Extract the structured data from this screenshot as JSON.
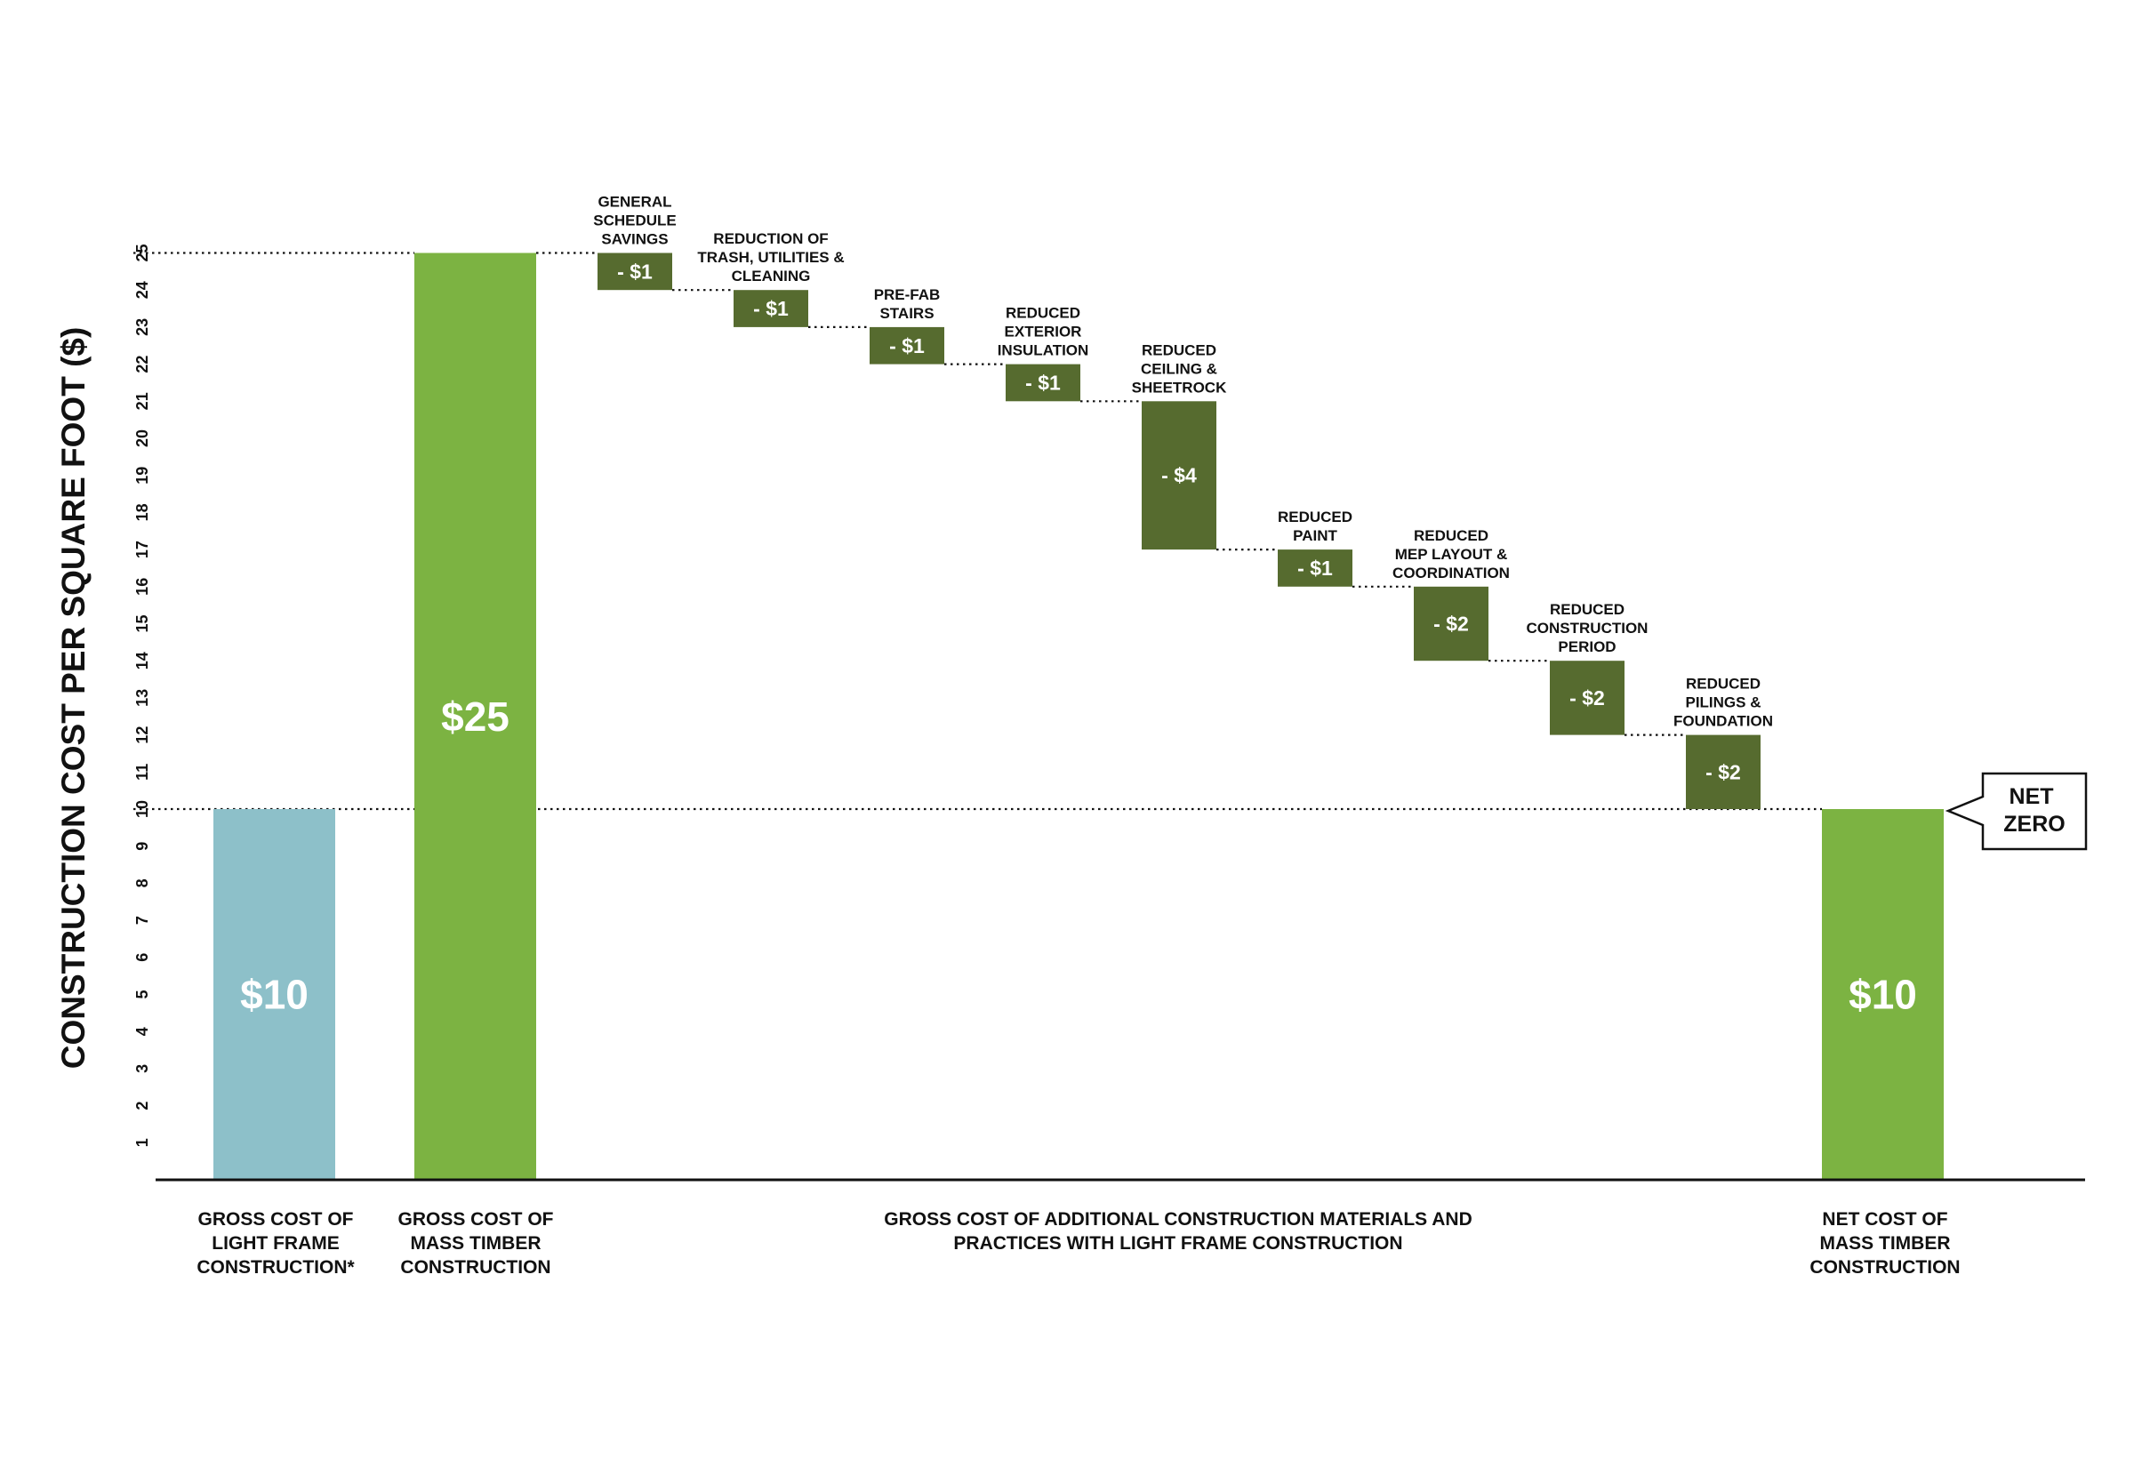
{
  "chart_data": {
    "type": "waterfall",
    "ylabel": "CONSTRUCTION COST PER SQUARE FOOT ($)",
    "ylim": [
      0,
      25
    ],
    "yticks": [
      "1",
      "2",
      "3",
      "4",
      "5",
      "6",
      "7",
      "8",
      "9",
      "10",
      "11",
      "12",
      "13",
      "14",
      "15",
      "16",
      "17",
      "18",
      "19",
      "20",
      "21",
      "22",
      "23",
      "24",
      "25"
    ],
    "colors": {
      "light_frame": "#8dc0c9",
      "mass_timber": "#7cb342",
      "reduction": "#566b2f",
      "axis": "#111111"
    },
    "bars": [
      {
        "kind": "total",
        "label": "GROSS COST OF LIGHT FRAME CONSTRUCTION*",
        "value": 10,
        "value_label": "$10",
        "color_key": "light_frame"
      },
      {
        "kind": "total",
        "label": "GROSS COST OF MASS TIMBER CONSTRUCTION",
        "value": 25,
        "value_label": "$25",
        "color_key": "mass_timber"
      },
      {
        "kind": "delta",
        "label": "GENERAL SCHEDULE SAVINGS",
        "label_lines": [
          "GENERAL",
          "SCHEDULE",
          "SAVINGS"
        ],
        "start": 25,
        "value": -1,
        "value_label": "- $1"
      },
      {
        "kind": "delta",
        "label": "REDUCTION OF TRASH, UTILITIES & CLEANING",
        "label_lines": [
          "REDUCTION OF",
          "TRASH, UTILITIES &",
          "CLEANING"
        ],
        "start": 24,
        "value": -1,
        "value_label": "- $1"
      },
      {
        "kind": "delta",
        "label": "PRE-FAB STAIRS",
        "label_lines": [
          "PRE-FAB",
          "STAIRS"
        ],
        "start": 23,
        "value": -1,
        "value_label": "- $1"
      },
      {
        "kind": "delta",
        "label": "REDUCED EXTERIOR INSULATION",
        "label_lines": [
          "REDUCED",
          "EXTERIOR",
          "INSULATION"
        ],
        "start": 22,
        "value": -1,
        "value_label": "- $1"
      },
      {
        "kind": "delta",
        "label": "REDUCED CEILING & SHEETROCK",
        "label_lines": [
          "REDUCED",
          "CEILING &",
          "SHEETROCK"
        ],
        "start": 21,
        "value": -4,
        "value_label": "- $4"
      },
      {
        "kind": "delta",
        "label": "REDUCED PAINT",
        "label_lines": [
          "REDUCED",
          "PAINT"
        ],
        "start": 17,
        "value": -1,
        "value_label": "- $1"
      },
      {
        "kind": "delta",
        "label": "REDUCED MEP LAYOUT & COORDINATION",
        "label_lines": [
          "REDUCED",
          "MEP LAYOUT &",
          "COORDINATION"
        ],
        "start": 16,
        "value": -2,
        "value_label": "- $2"
      },
      {
        "kind": "delta",
        "label": "REDUCED CONSTRUCTION PERIOD",
        "label_lines": [
          "REDUCED",
          "CONSTRUCTION",
          "PERIOD"
        ],
        "start": 14,
        "value": -2,
        "value_label": "- $2"
      },
      {
        "kind": "delta",
        "label": "REDUCED PILINGS & FOUNDATION",
        "label_lines": [
          "REDUCED",
          "PILINGS &",
          "FOUNDATION"
        ],
        "start": 12,
        "value": -2,
        "value_label": "- $2"
      },
      {
        "kind": "total",
        "label": "NET COST OF MASS TIMBER CONSTRUCTION",
        "value": 10,
        "value_label": "$10",
        "color_key": "mass_timber"
      }
    ],
    "x_categories": [
      {
        "lines": [
          "GROSS COST OF",
          "LIGHT FRAME",
          "CONSTRUCTION*"
        ]
      },
      {
        "lines": [
          "GROSS COST OF",
          "MASS TIMBER",
          "CONSTRUCTION"
        ]
      },
      {
        "lines": [
          "GROSS COST OF ADDITIONAL CONSTRUCTION MATERIALS AND",
          "PRACTICES WITH LIGHT FRAME CONSTRUCTION"
        ]
      },
      {
        "lines": [
          "NET COST OF",
          "MASS TIMBER",
          "CONSTRUCTION"
        ]
      }
    ],
    "callout": {
      "lines": [
        "NET",
        "ZERO"
      ]
    },
    "grid": false,
    "legend": "none"
  }
}
